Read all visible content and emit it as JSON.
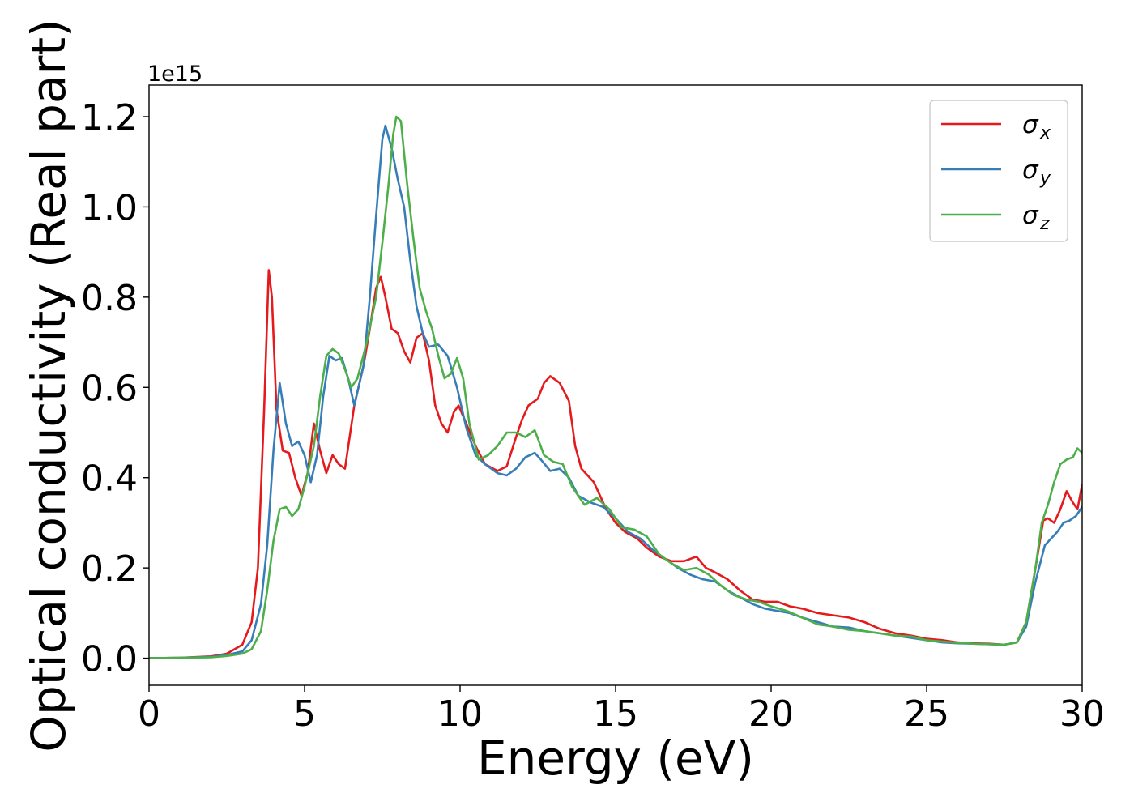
{
  "chart_data": {
    "type": "line",
    "xlabel": "Energy (eV)",
    "ylabel": "Optical conductivity (Real part)",
    "y_offset_label": "1e15",
    "xlim": [
      0,
      30
    ],
    "ylim": [
      -0.06,
      1.27
    ],
    "x_ticks": [
      0,
      5,
      10,
      15,
      20,
      25,
      30
    ],
    "x_tick_labels": [
      "0",
      "5",
      "10",
      "15",
      "20",
      "25",
      "30"
    ],
    "y_ticks": [
      0.0,
      0.2,
      0.4,
      0.6,
      0.8,
      1.0,
      1.2
    ],
    "y_tick_labels": [
      "0.0",
      "0.2",
      "0.4",
      "0.6",
      "0.8",
      "1.0",
      "1.2"
    ],
    "grid": false,
    "legend_position": "top-right",
    "series": [
      {
        "name": "σ",
        "sub": "x",
        "color": "#e41a1c",
        "points": [
          [
            0,
            0
          ],
          [
            1,
            0.001
          ],
          [
            2,
            0.004
          ],
          [
            2.5,
            0.01
          ],
          [
            3,
            0.03
          ],
          [
            3.3,
            0.08
          ],
          [
            3.5,
            0.2
          ],
          [
            3.7,
            0.55
          ],
          [
            3.85,
            0.86
          ],
          [
            3.95,
            0.8
          ],
          [
            4.1,
            0.55
          ],
          [
            4.3,
            0.46
          ],
          [
            4.5,
            0.455
          ],
          [
            4.7,
            0.4
          ],
          [
            4.9,
            0.36
          ],
          [
            5.1,
            0.41
          ],
          [
            5.3,
            0.52
          ],
          [
            5.5,
            0.46
          ],
          [
            5.7,
            0.41
          ],
          [
            5.9,
            0.45
          ],
          [
            6.1,
            0.43
          ],
          [
            6.3,
            0.42
          ],
          [
            6.6,
            0.56
          ],
          [
            6.9,
            0.65
          ],
          [
            7.1,
            0.73
          ],
          [
            7.3,
            0.82
          ],
          [
            7.45,
            0.845
          ],
          [
            7.6,
            0.8
          ],
          [
            7.8,
            0.73
          ],
          [
            8.0,
            0.72
          ],
          [
            8.2,
            0.68
          ],
          [
            8.4,
            0.655
          ],
          [
            8.6,
            0.71
          ],
          [
            8.8,
            0.72
          ],
          [
            9.0,
            0.66
          ],
          [
            9.2,
            0.56
          ],
          [
            9.4,
            0.52
          ],
          [
            9.6,
            0.5
          ],
          [
            9.8,
            0.545
          ],
          [
            9.95,
            0.56
          ],
          [
            10.2,
            0.52
          ],
          [
            10.5,
            0.47
          ],
          [
            10.8,
            0.43
          ],
          [
            11.2,
            0.415
          ],
          [
            11.5,
            0.425
          ],
          [
            11.8,
            0.49
          ],
          [
            12.0,
            0.53
          ],
          [
            12.2,
            0.56
          ],
          [
            12.5,
            0.575
          ],
          [
            12.7,
            0.61
          ],
          [
            12.9,
            0.625
          ],
          [
            13.2,
            0.61
          ],
          [
            13.5,
            0.57
          ],
          [
            13.7,
            0.47
          ],
          [
            13.9,
            0.42
          ],
          [
            14.3,
            0.39
          ],
          [
            14.7,
            0.33
          ],
          [
            15.0,
            0.3
          ],
          [
            15.3,
            0.28
          ],
          [
            15.7,
            0.265
          ],
          [
            16.0,
            0.245
          ],
          [
            16.4,
            0.225
          ],
          [
            16.8,
            0.215
          ],
          [
            17.2,
            0.215
          ],
          [
            17.6,
            0.225
          ],
          [
            17.9,
            0.2
          ],
          [
            18.2,
            0.19
          ],
          [
            18.6,
            0.175
          ],
          [
            19.0,
            0.15
          ],
          [
            19.4,
            0.13
          ],
          [
            19.8,
            0.125
          ],
          [
            20.2,
            0.125
          ],
          [
            20.6,
            0.115
          ],
          [
            21.0,
            0.11
          ],
          [
            21.5,
            0.1
          ],
          [
            22.0,
            0.095
          ],
          [
            22.5,
            0.09
          ],
          [
            23.0,
            0.08
          ],
          [
            23.5,
            0.065
          ],
          [
            24.0,
            0.055
          ],
          [
            24.5,
            0.05
          ],
          [
            25.0,
            0.043
          ],
          [
            25.5,
            0.04
          ],
          [
            26.0,
            0.035
          ],
          [
            26.5,
            0.033
          ],
          [
            27.0,
            0.032
          ],
          [
            27.5,
            0.03
          ],
          [
            27.9,
            0.035
          ],
          [
            28.2,
            0.08
          ],
          [
            28.5,
            0.2
          ],
          [
            28.75,
            0.305
          ],
          [
            28.9,
            0.31
          ],
          [
            29.1,
            0.3
          ],
          [
            29.3,
            0.33
          ],
          [
            29.5,
            0.37
          ],
          [
            29.7,
            0.345
          ],
          [
            29.85,
            0.33
          ],
          [
            30.0,
            0.385
          ]
        ]
      },
      {
        "name": "σ",
        "sub": "y",
        "color": "#377eb8",
        "points": [
          [
            0,
            0
          ],
          [
            1,
            0.001
          ],
          [
            2,
            0.003
          ],
          [
            2.5,
            0.007
          ],
          [
            3,
            0.015
          ],
          [
            3.3,
            0.04
          ],
          [
            3.6,
            0.12
          ],
          [
            3.8,
            0.25
          ],
          [
            4.0,
            0.46
          ],
          [
            4.2,
            0.61
          ],
          [
            4.4,
            0.52
          ],
          [
            4.6,
            0.47
          ],
          [
            4.8,
            0.48
          ],
          [
            5.0,
            0.45
          ],
          [
            5.2,
            0.39
          ],
          [
            5.4,
            0.45
          ],
          [
            5.6,
            0.58
          ],
          [
            5.8,
            0.67
          ],
          [
            6.0,
            0.66
          ],
          [
            6.2,
            0.665
          ],
          [
            6.4,
            0.62
          ],
          [
            6.6,
            0.56
          ],
          [
            6.9,
            0.65
          ],
          [
            7.1,
            0.8
          ],
          [
            7.3,
            0.98
          ],
          [
            7.5,
            1.15
          ],
          [
            7.6,
            1.18
          ],
          [
            7.8,
            1.13
          ],
          [
            8.0,
            1.06
          ],
          [
            8.2,
            1.0
          ],
          [
            8.4,
            0.88
          ],
          [
            8.6,
            0.78
          ],
          [
            8.8,
            0.72
          ],
          [
            9.0,
            0.69
          ],
          [
            9.3,
            0.695
          ],
          [
            9.6,
            0.67
          ],
          [
            9.9,
            0.6
          ],
          [
            10.2,
            0.51
          ],
          [
            10.5,
            0.45
          ],
          [
            10.8,
            0.43
          ],
          [
            11.2,
            0.41
          ],
          [
            11.5,
            0.405
          ],
          [
            11.8,
            0.42
          ],
          [
            12.1,
            0.445
          ],
          [
            12.4,
            0.455
          ],
          [
            12.6,
            0.44
          ],
          [
            12.9,
            0.415
          ],
          [
            13.2,
            0.42
          ],
          [
            13.5,
            0.4
          ],
          [
            13.8,
            0.36
          ],
          [
            14.2,
            0.345
          ],
          [
            14.6,
            0.335
          ],
          [
            15.0,
            0.31
          ],
          [
            15.4,
            0.28
          ],
          [
            15.8,
            0.265
          ],
          [
            16.2,
            0.24
          ],
          [
            16.6,
            0.22
          ],
          [
            17.0,
            0.2
          ],
          [
            17.4,
            0.185
          ],
          [
            17.8,
            0.175
          ],
          [
            18.2,
            0.17
          ],
          [
            18.6,
            0.15
          ],
          [
            19.0,
            0.135
          ],
          [
            19.4,
            0.12
          ],
          [
            19.8,
            0.11
          ],
          [
            20.2,
            0.105
          ],
          [
            20.6,
            0.1
          ],
          [
            21.0,
            0.09
          ],
          [
            21.5,
            0.08
          ],
          [
            22.0,
            0.07
          ],
          [
            22.5,
            0.068
          ],
          [
            23.0,
            0.06
          ],
          [
            23.5,
            0.055
          ],
          [
            24.0,
            0.05
          ],
          [
            24.5,
            0.045
          ],
          [
            25.0,
            0.04
          ],
          [
            25.5,
            0.035
          ],
          [
            26.0,
            0.033
          ],
          [
            26.5,
            0.032
          ],
          [
            27.0,
            0.031
          ],
          [
            27.5,
            0.03
          ],
          [
            27.9,
            0.035
          ],
          [
            28.2,
            0.07
          ],
          [
            28.5,
            0.17
          ],
          [
            28.8,
            0.25
          ],
          [
            29.0,
            0.265
          ],
          [
            29.2,
            0.28
          ],
          [
            29.4,
            0.3
          ],
          [
            29.6,
            0.305
          ],
          [
            29.8,
            0.315
          ],
          [
            30.0,
            0.335
          ]
        ]
      },
      {
        "name": "σ",
        "sub": "z",
        "color": "#4daf4a",
        "points": [
          [
            0,
            0
          ],
          [
            1,
            0.001
          ],
          [
            2,
            0.002
          ],
          [
            2.5,
            0.005
          ],
          [
            3,
            0.01
          ],
          [
            3.3,
            0.02
          ],
          [
            3.6,
            0.06
          ],
          [
            3.8,
            0.15
          ],
          [
            4.0,
            0.26
          ],
          [
            4.2,
            0.33
          ],
          [
            4.4,
            0.335
          ],
          [
            4.6,
            0.315
          ],
          [
            4.8,
            0.33
          ],
          [
            5.0,
            0.38
          ],
          [
            5.3,
            0.47
          ],
          [
            5.5,
            0.58
          ],
          [
            5.7,
            0.67
          ],
          [
            5.9,
            0.685
          ],
          [
            6.1,
            0.675
          ],
          [
            6.3,
            0.64
          ],
          [
            6.5,
            0.6
          ],
          [
            6.7,
            0.62
          ],
          [
            7.0,
            0.7
          ],
          [
            7.3,
            0.8
          ],
          [
            7.5,
            0.92
          ],
          [
            7.7,
            1.05
          ],
          [
            7.85,
            1.16
          ],
          [
            7.95,
            1.2
          ],
          [
            8.1,
            1.19
          ],
          [
            8.3,
            1.05
          ],
          [
            8.5,
            0.93
          ],
          [
            8.7,
            0.82
          ],
          [
            8.9,
            0.77
          ],
          [
            9.1,
            0.73
          ],
          [
            9.3,
            0.67
          ],
          [
            9.5,
            0.62
          ],
          [
            9.7,
            0.63
          ],
          [
            9.9,
            0.665
          ],
          [
            10.1,
            0.62
          ],
          [
            10.3,
            0.52
          ],
          [
            10.6,
            0.44
          ],
          [
            10.9,
            0.45
          ],
          [
            11.2,
            0.47
          ],
          [
            11.5,
            0.5
          ],
          [
            11.8,
            0.5
          ],
          [
            12.1,
            0.49
          ],
          [
            12.4,
            0.505
          ],
          [
            12.7,
            0.45
          ],
          [
            13.0,
            0.435
          ],
          [
            13.3,
            0.43
          ],
          [
            13.6,
            0.38
          ],
          [
            14.0,
            0.34
          ],
          [
            14.4,
            0.355
          ],
          [
            14.8,
            0.33
          ],
          [
            15.2,
            0.29
          ],
          [
            15.6,
            0.285
          ],
          [
            16.0,
            0.27
          ],
          [
            16.4,
            0.23
          ],
          [
            16.8,
            0.21
          ],
          [
            17.2,
            0.195
          ],
          [
            17.6,
            0.2
          ],
          [
            18.0,
            0.185
          ],
          [
            18.4,
            0.16
          ],
          [
            18.8,
            0.14
          ],
          [
            19.2,
            0.13
          ],
          [
            19.6,
            0.125
          ],
          [
            20.0,
            0.115
          ],
          [
            20.5,
            0.105
          ],
          [
            21.0,
            0.09
          ],
          [
            21.5,
            0.075
          ],
          [
            22.0,
            0.07
          ],
          [
            22.5,
            0.063
          ],
          [
            23.0,
            0.06
          ],
          [
            23.5,
            0.055
          ],
          [
            24.0,
            0.05
          ],
          [
            24.5,
            0.048
          ],
          [
            25.0,
            0.04
          ],
          [
            25.5,
            0.037
          ],
          [
            26.0,
            0.034
          ],
          [
            26.5,
            0.032
          ],
          [
            27.0,
            0.031
          ],
          [
            27.5,
            0.03
          ],
          [
            27.9,
            0.035
          ],
          [
            28.2,
            0.08
          ],
          [
            28.5,
            0.2
          ],
          [
            28.7,
            0.3
          ],
          [
            28.9,
            0.34
          ],
          [
            29.1,
            0.39
          ],
          [
            29.3,
            0.43
          ],
          [
            29.5,
            0.44
          ],
          [
            29.7,
            0.445
          ],
          [
            29.85,
            0.465
          ],
          [
            30.0,
            0.455
          ]
        ]
      }
    ]
  }
}
